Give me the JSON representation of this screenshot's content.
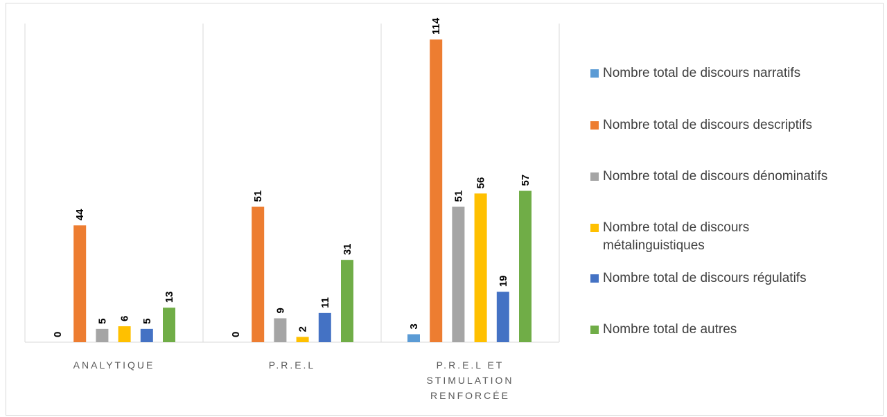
{
  "chart_data": {
    "type": "bar",
    "categories": [
      "ANALYTIQUE",
      "P.R.E.L",
      "P.R.E.L ET STIMULATION RENFORCÉE"
    ],
    "category_label_lines": [
      [
        "ANALYTIQUE"
      ],
      [
        "P.R.E.L"
      ],
      [
        "P.R.E.L ET",
        "STIMULATION",
        "RENFORCÉE"
      ]
    ],
    "series": [
      {
        "name": "Nombre total de discours narratifs",
        "color": "#5b9bd5",
        "values": [
          0,
          0,
          3
        ]
      },
      {
        "name": "Nombre total de discours descriptifs",
        "color": "#ed7d31",
        "values": [
          44,
          51,
          114
        ]
      },
      {
        "name": "Nombre total de discours dénominatifs",
        "color": "#a5a5a5",
        "values": [
          5,
          9,
          51
        ]
      },
      {
        "name": "Nombre total de discours métalinguistiques",
        "color": "#ffc000",
        "values": [
          6,
          2,
          56
        ]
      },
      {
        "name": "Nombre total de discours régulatifs",
        "color": "#4472c4",
        "values": [
          5,
          11,
          19
        ]
      },
      {
        "name": "Nombre total de autres",
        "color": "#70ad47",
        "values": [
          13,
          31,
          57
        ]
      }
    ],
    "legend_label_lines": [
      [
        "Nombre total de discours narratifs"
      ],
      [
        "Nombre total de discours descriptifs"
      ],
      [
        "Nombre total de discours dénominatifs"
      ],
      [
        "Nombre total de discours",
        "métalinguistiques"
      ],
      [
        "Nombre total de discours régulatifs"
      ],
      [
        "Nombre total de autres"
      ]
    ],
    "title": "",
    "xlabel": "",
    "ylabel": "",
    "ylim": [
      0,
      114
    ],
    "grid": false,
    "legend_position": "right",
    "data_labels": true
  }
}
